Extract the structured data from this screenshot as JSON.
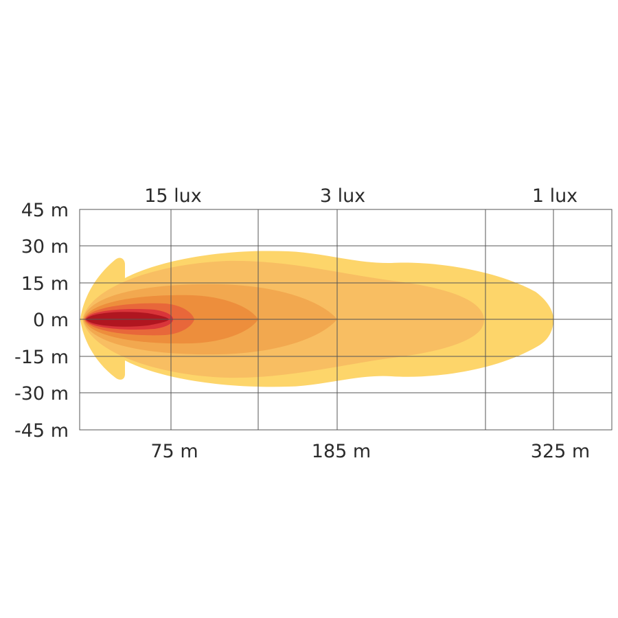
{
  "chart_data": {
    "type": "area",
    "title": "",
    "xlabel": "",
    "ylabel": "",
    "y_ticks": [
      "45 m",
      "30 m",
      "15 m",
      "0 m",
      "-15 m",
      "-30 m",
      "-45 m"
    ],
    "x_tick_labels": [
      "75 m",
      "185 m",
      "325 m"
    ],
    "lux_labels": [
      "15 lux",
      "3 lux",
      "1 lux"
    ],
    "grid": true,
    "series": [
      {
        "color": "#FDD56A",
        "reach_m": 325,
        "halfwidth_m": 26
      },
      {
        "color": "#F8BE62",
        "reach_m": 270,
        "halfwidth_m": 22
      },
      {
        "color": "#F2A84F",
        "reach_m": 185,
        "halfwidth_m": 17
      },
      {
        "color": "#ED8E3C",
        "reach_m": 140,
        "halfwidth_m": 12
      },
      {
        "color": "#E8673A",
        "reach_m": 90,
        "halfwidth_m": 7
      },
      {
        "color": "#D9353A",
        "reach_m": 75,
        "halfwidth_m": 4
      },
      {
        "color": "#B01620",
        "reach_m": 70,
        "halfwidth_m": 3
      }
    ]
  }
}
